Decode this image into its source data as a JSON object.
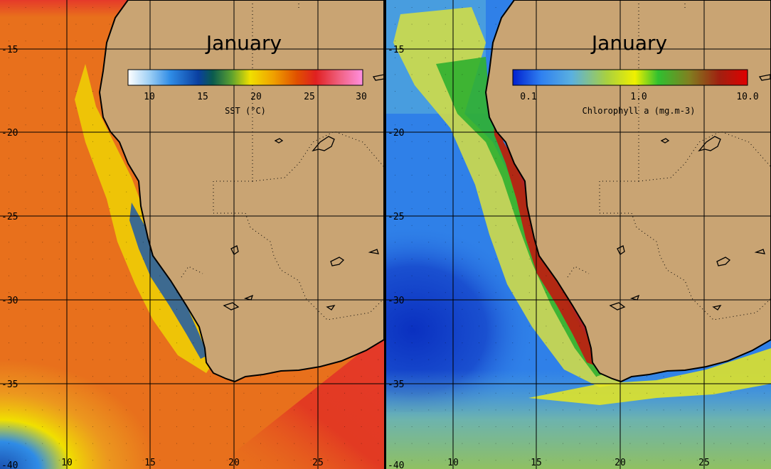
{
  "colors": {
    "land": "#c9a473",
    "coast": "#000000",
    "grid": "#000000"
  },
  "panels": [
    {
      "id": "sst",
      "month": "January",
      "colorbar": {
        "label": "SST  (°C)",
        "ticks": [
          "10",
          "15",
          "20",
          "25",
          "30"
        ],
        "range": [
          8,
          30
        ],
        "stops": [
          "#ffffff",
          "#9fd0f5",
          "#2f8ce6",
          "#0a3fa0",
          "#0a5a4f",
          "#5aa030",
          "#f0e000",
          "#f0a000",
          "#e05000",
          "#e02020",
          "#f06080",
          "#ff90e0"
        ]
      },
      "lat_labels": [
        "-15",
        "-20",
        "-25",
        "-30",
        "-35",
        "-40"
      ],
      "lon_labels": [
        "10",
        "15",
        "20",
        "25"
      ],
      "ocean_stops": [
        "#e53a2a",
        "#e8701c",
        "#eeb020",
        "#f0e000",
        "#2f8ce6",
        "#1a50b0"
      ]
    },
    {
      "id": "chl",
      "month": "January",
      "colorbar": {
        "label": "Chlorophyll a  (mg.m-3)",
        "ticks": [
          "0.1",
          "1.0",
          "10.0"
        ],
        "range": [
          0.07,
          10
        ],
        "stops": [
          "#0020d0",
          "#2f80f0",
          "#5ab0e0",
          "#a8d040",
          "#f0f000",
          "#30c030",
          "#808020",
          "#a02010",
          "#e00000"
        ]
      },
      "lat_labels": [
        "-15",
        "-20",
        "-25",
        "-30",
        "-35",
        "-40"
      ],
      "lon_labels": [
        "10",
        "15",
        "20",
        "25"
      ],
      "ocean_stops": [
        "#2f80e8",
        "#1a50c8",
        "#5ab0d8",
        "#c8e040",
        "#30c030",
        "#d01010"
      ]
    }
  ]
}
